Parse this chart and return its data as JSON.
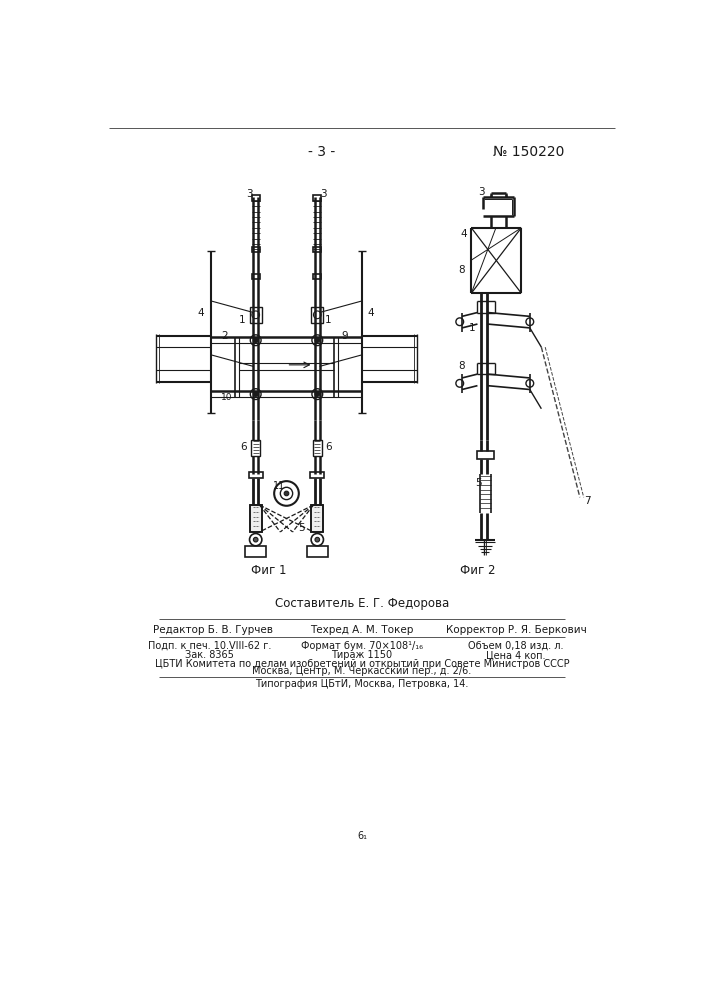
{
  "page_number": "- 3 -",
  "patent_number": "№ 150220",
  "fig1_label": "Фиг 1",
  "fig2_label": "Фиг 2",
  "composer_line": "Составитель Е. Г. Федорова",
  "editor_line": "Редактор Б. В. Гурчев",
  "techred_line": "Техред А. М. Токер",
  "corrector_line": "Корректор Р. Я. Беркович",
  "podp_line": "Подп. к печ. 10.VIII-62 г.",
  "format_line": "Формат бум. 70×108¹/₁₆",
  "obem_line": "Объем 0,18 изд. л.",
  "zak_line": "Зак. 8365",
  "tirazh_line": "Тираж 1150",
  "cena_line": "Цена 4 коп.",
  "cbti_line1": "ЦБТИ Комитета по делам изобретений и открытий при Совете Министров СССР",
  "cbti_line2": "Москва, Центр, М. Черкасский пер., д. 2/6.",
  "tipografia_line": "Типография ЦБтИ, Москва, Петровка, 14.",
  "small_char": "6₁",
  "bg_color": "#ffffff"
}
